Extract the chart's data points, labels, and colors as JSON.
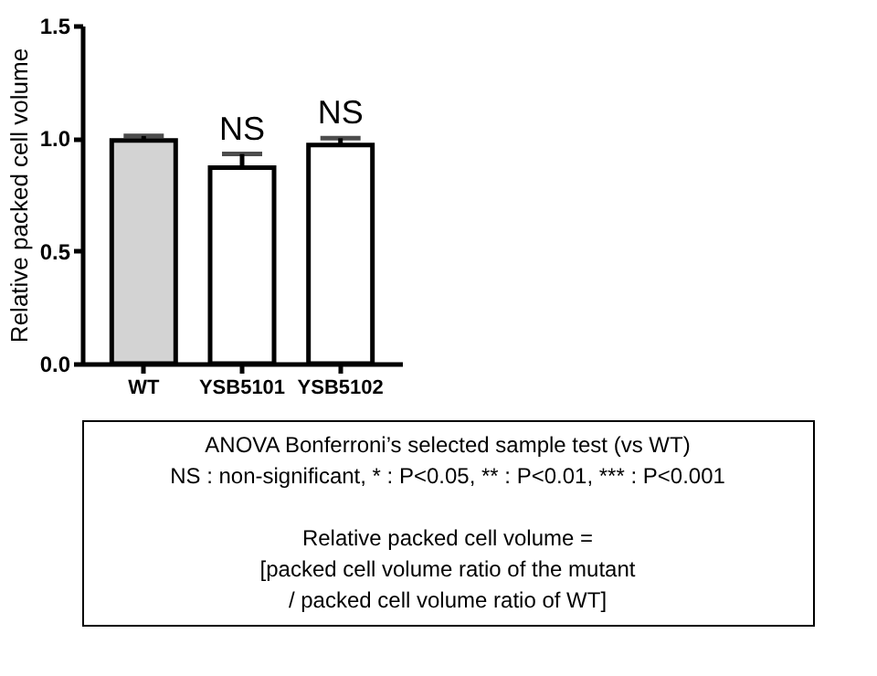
{
  "chart_data": {
    "type": "bar",
    "categories": [
      "WT",
      "YSB5101",
      "YSB5102"
    ],
    "values": [
      0.99,
      0.87,
      0.97
    ],
    "colors": [
      "#d3d3d3",
      "#ffffff",
      "#ffffff"
    ],
    "errors": [
      [
        0.99,
        1.01
      ],
      [
        0.87,
        0.93
      ],
      [
        0.97,
        1.0
      ]
    ],
    "ylabel": "Relative packed cell volume",
    "ylim": [
      0,
      1.5
    ],
    "yticks": [
      {
        "value": 0,
        "label": "0.0"
      },
      {
        "value": 0.5,
        "label": "0.5"
      },
      {
        "value": 1,
        "label": "1.0"
      },
      {
        "value": 1.5,
        "label": "1.5"
      }
    ],
    "grid": false,
    "annotations": [
      {
        "text": "NS",
        "x": "YSB5101",
        "y": 0.93
      },
      {
        "text": "NS",
        "x": "YSB5102",
        "y": 1.0
      },
      "ANOVA Bonferroni’s selected sample test (vs WT)",
      "NS : non-significant, * : P<0.05, ** : P<0.01, *** : P<0.001",
      "Relative packed cell volume =",
      "[packed cell volume ratio of the mutant",
      "/ packed cell volume ratio of WT]"
    ]
  }
}
